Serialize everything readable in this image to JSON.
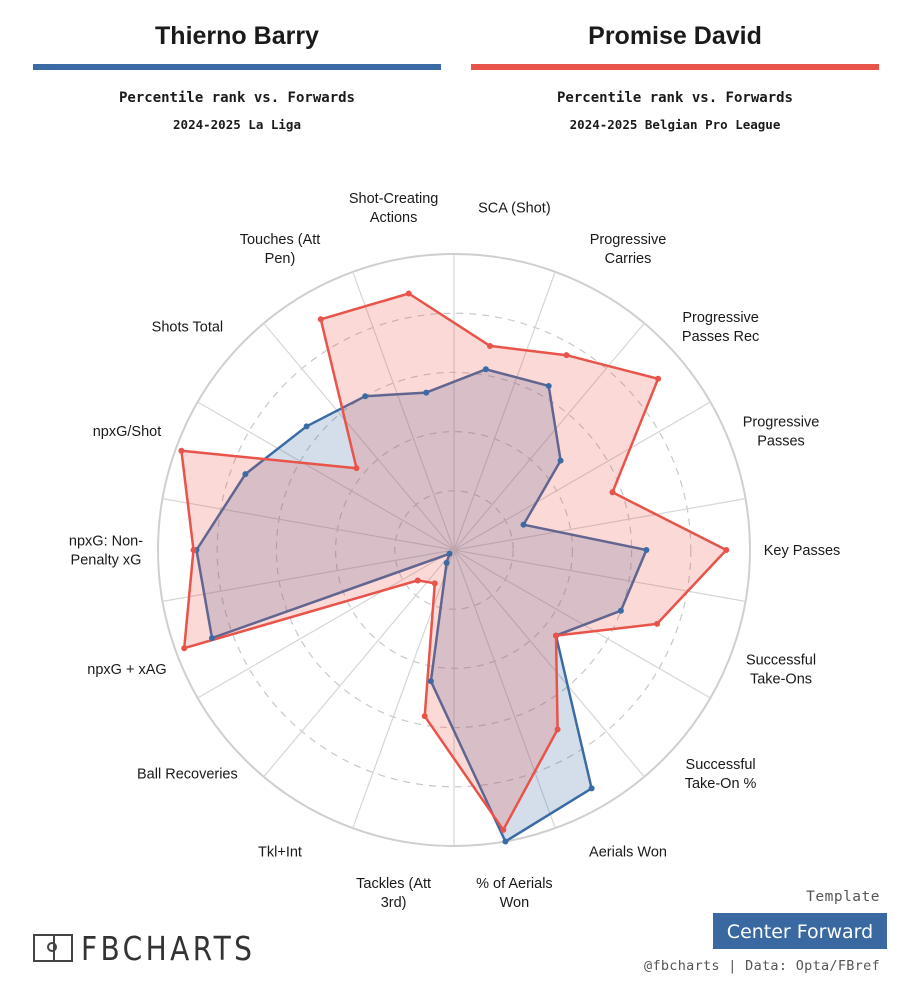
{
  "players": [
    {
      "name": "Thierno Barry",
      "subtitle": "Percentile rank vs. Forwards",
      "competition": "2024-2025 La Liga",
      "color": "#3b6ba5"
    },
    {
      "name": "Promise David",
      "subtitle": "Percentile rank vs. Forwards",
      "competition": "2024-2025 Belgian Pro League",
      "color": "#e8534a"
    }
  ],
  "footer": {
    "template_label": "Template",
    "template_value": "Center Forward",
    "credit": "@fbcharts | Data: Opta/FBref",
    "logo_text": "FBCHARTS"
  },
  "chart_data": {
    "type": "radar",
    "scale": [
      0,
      100
    ],
    "grid": true,
    "categories": [
      "Key Passes",
      "Progressive Passes",
      "Progressive Passes Rec",
      "Progressive Carries",
      "SCA (Shot)",
      "Shot-Creating Actions",
      "Touches (Att Pen)",
      "Shots Total",
      "npxG/Shot",
      "npxG: Non-Penalty xG",
      "npxG + xAG",
      "Ball Recoveries",
      "Tkl+Int",
      "Tackles (Att 3rd)",
      "% of Aerials Won",
      "Aerials Won",
      "Successful Take-On %",
      "Successful Take-Ons"
    ],
    "series": [
      {
        "name": "Thierno Barry",
        "color": "#3b6ba5",
        "values": [
          65,
          25,
          47,
          64,
          62,
          54,
          60,
          65,
          75,
          87,
          87,
          2,
          5,
          45,
          100,
          93,
          45,
          60
        ]
      },
      {
        "name": "Promise David",
        "color": "#e8534a",
        "values": [
          92,
          57,
          90,
          76,
          70,
          88,
          90,
          43,
          98,
          88,
          97,
          16,
          13,
          57,
          96,
          70,
          45,
          73
        ]
      }
    ]
  }
}
